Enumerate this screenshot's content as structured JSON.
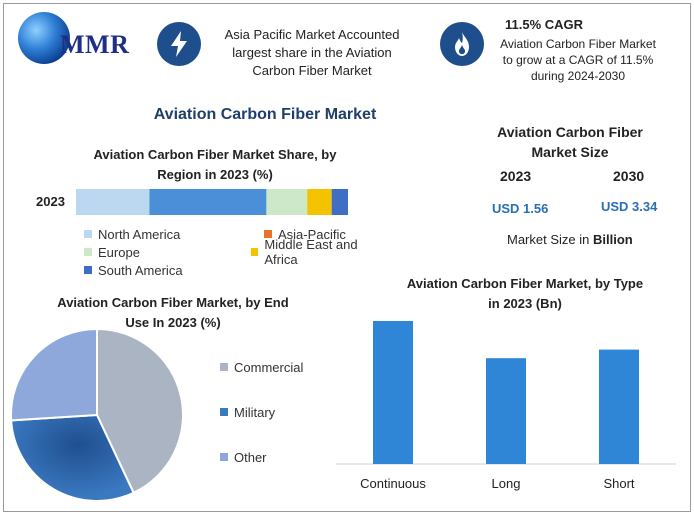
{
  "header": {
    "logo_text": "MMR",
    "insight1": {
      "icon": "lightning-icon",
      "lines": [
        "Asia Pacific Market Accounted",
        "largest share in the Aviation",
        "Carbon Fiber Market"
      ]
    },
    "insight2": {
      "icon": "flame-icon",
      "title": "11.5% CAGR",
      "lines": [
        "Aviation Carbon Fiber Market",
        "to grow at a CAGR of 11.5%",
        "during 2024-2030"
      ]
    }
  },
  "main_title": "Aviation Carbon Fiber Market",
  "market_size": {
    "title_lines": [
      "Aviation Carbon Fiber",
      "Market Size"
    ],
    "years": [
      "2023",
      "2030"
    ],
    "values": [
      "USD 1.56",
      "USD 3.34"
    ],
    "note_prefix": "Market Size in ",
    "note_bold": "Billion"
  },
  "colors": {
    "north_america": "#bcd7f0",
    "asia_pacific": "#4a8fd8",
    "europe": "#cde8c8",
    "middle_east_africa": "#f5c200",
    "south_america": "#3f6fc4",
    "bar_blue": "#2f86d6",
    "commercial": "#aab4c2",
    "military": "#3a78c0",
    "other": "#8fa8dc"
  },
  "chart_data": [
    {
      "type": "bar",
      "title": "Aviation Carbon Fiber Market Share, by Region in 2023 (%)",
      "title_lines": [
        "Aviation Carbon Fiber Market Share, by",
        "Region in 2023 (%)"
      ],
      "categories": [
        "2023"
      ],
      "stacked": true,
      "series": [
        {
          "name": "North America",
          "values": [
            27
          ]
        },
        {
          "name": "Asia-Pacific",
          "values": [
            43
          ]
        },
        {
          "name": "Europe",
          "values": [
            15
          ]
        },
        {
          "name": "Middle East and Africa",
          "values": [
            9
          ]
        },
        {
          "name": "South America",
          "values": [
            6
          ]
        }
      ],
      "legend": [
        {
          "name": "North America",
          "key": "north_america"
        },
        {
          "name": "Asia-Pacific",
          "key": "asia_pacific"
        },
        {
          "name": "Europe",
          "key": "europe"
        },
        {
          "name": "Middle East and Africa",
          "key": "middle_east_africa"
        },
        {
          "name": "South America",
          "key": "south_america"
        }
      ]
    },
    {
      "type": "pie",
      "title": "Aviation Carbon Fiber Market, by End Use In 2023 (%)",
      "title_lines": [
        "Aviation Carbon Fiber Market, by End",
        "Use In 2023 (%)"
      ],
      "categories": [
        "Commercial",
        "Military",
        "Other"
      ],
      "values": [
        43,
        31,
        26
      ]
    },
    {
      "type": "bar",
      "title": "Aviation Carbon Fiber Market, by Type in 2023 (Bn)",
      "title_lines": [
        "Aviation Carbon Fiber Market, by Type",
        "in 2023 (Bn)"
      ],
      "categories": [
        "Continuous",
        "Long",
        "Short"
      ],
      "values": [
        1.0,
        0.74,
        0.8
      ],
      "ylim": [
        0,
        1.0
      ]
    }
  ]
}
